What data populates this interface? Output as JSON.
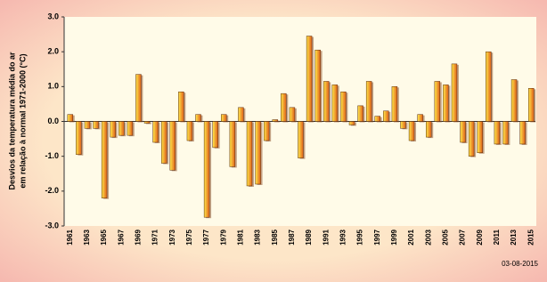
{
  "chart_data": {
    "type": "bar",
    "ylabel": [
      "Desvios da temperatura média do ar",
      "em relação à normal 1971-2000 (°C)"
    ],
    "categories": [
      "1961",
      null,
      "1963",
      null,
      "1965",
      null,
      "1967",
      null,
      "1969",
      null,
      "1971",
      null,
      "1973",
      null,
      "1975",
      null,
      "1977",
      null,
      "1979",
      null,
      "1981",
      null,
      "1983",
      null,
      "1985",
      null,
      "1987",
      null,
      "1989",
      null,
      "1991",
      null,
      "1993",
      null,
      "1995",
      null,
      "1997",
      null,
      "1999",
      null,
      "2001",
      null,
      "2003",
      null,
      "2005",
      null,
      "2007",
      null,
      "2009",
      null,
      "2011",
      null,
      "2013",
      null,
      "2015"
    ],
    "values": [
      0.2,
      -0.95,
      -0.2,
      -0.2,
      -2.2,
      -0.45,
      -0.4,
      -0.4,
      1.35,
      -0.05,
      -0.6,
      -1.2,
      -1.4,
      0.85,
      -0.55,
      0.2,
      -2.75,
      -0.75,
      0.2,
      -1.3,
      0.4,
      -1.85,
      -1.8,
      -0.55,
      0.05,
      0.8,
      0.4,
      -1.05,
      2.45,
      2.05,
      1.15,
      1.05,
      0.85,
      -0.1,
      0.45,
      1.15,
      0.15,
      0.3,
      1.0,
      -0.2,
      -0.55,
      0.2,
      -0.45,
      1.15,
      1.05,
      1.65,
      -0.6,
      -1.0,
      -0.9,
      2.0,
      -0.65,
      -0.65,
      1.2,
      -0.65,
      0.95
    ],
    "color": "#e0601a",
    "ylim": [
      -3,
      3
    ],
    "yticks": [
      {
        "value": 3,
        "label": "3.0"
      },
      {
        "value": 2,
        "label": "2.0"
      },
      {
        "value": 1,
        "label": "1.0"
      },
      {
        "value": 0,
        "label": "0.0"
      },
      {
        "value": -1,
        "label": "-1.0"
      },
      {
        "value": -2,
        "label": "-2.0"
      },
      {
        "value": -3,
        "label": "-3.0"
      }
    ],
    "grid": false,
    "annotation": "03-08-2015"
  }
}
